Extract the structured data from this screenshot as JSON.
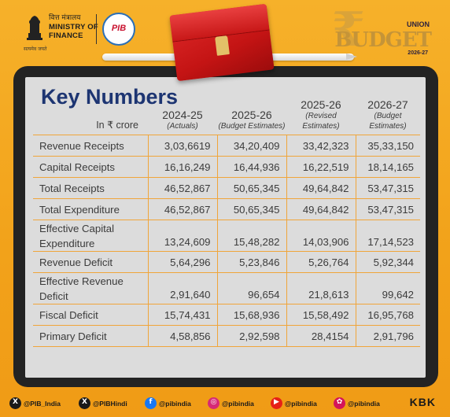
{
  "header": {
    "ministry_hindi": "वित्त मंत्रालय",
    "ministry_line1": "MINISTRY OF",
    "ministry_line2": "FINANCE",
    "tagline": "सत्यमेव जयते",
    "pib_logo_text": "PIB",
    "budget_union": "UNION",
    "budget_word": "BUDGET",
    "budget_year": "2026-27",
    "rupee_symbol": "₹"
  },
  "table": {
    "title": "Key Numbers",
    "unit_label": "In ₹ crore",
    "columns": [
      {
        "year": "2024-25",
        "sub": "(Actuals)"
      },
      {
        "year": "2025-26",
        "sub": "(Budget Estimates)"
      },
      {
        "year": "2025-26",
        "sub": "(Revised Estimates)"
      },
      {
        "year": "2026-27",
        "sub": "(Budget Estimates)"
      }
    ],
    "rows": [
      {
        "label": "Revenue Receipts",
        "values": [
          "3,03,6619",
          "34,20,409",
          "33,42,323",
          "35,33,150"
        ]
      },
      {
        "label": "Capital Receipts",
        "values": [
          "16,16,249",
          "16,44,936",
          "16,22,519",
          "18,14,165"
        ]
      },
      {
        "label": "Total Receipts",
        "values": [
          "46,52,867",
          "50,65,345",
          "49,64,842",
          "53,47,315"
        ]
      },
      {
        "label": "Total Expenditure",
        "values": [
          "46,52,867",
          "50,65,345",
          "49,64,842",
          "53,47,315"
        ]
      },
      {
        "label": "Effective Capital Expenditure",
        "values": [
          "13,24,609",
          "15,48,282",
          "14,03,906",
          "17,14,523"
        ]
      },
      {
        "label": "Revenue Deficit",
        "values": [
          "5,64,296",
          "5,23,846",
          "5,26,764",
          "5,92,344"
        ]
      },
      {
        "label": "Effective Revenue Deficit",
        "values": [
          "2,91,640",
          "96,654",
          "21,8,613",
          "99,642"
        ]
      },
      {
        "label": "Fiscal Deficit",
        "values": [
          "15,74,431",
          "15,68,936",
          "15,58,492",
          "16,95,768"
        ]
      },
      {
        "label": "Primary Deficit",
        "values": [
          "4,58,856",
          "2,92,598",
          "28,4154",
          "2,91,796"
        ]
      }
    ]
  },
  "footer": {
    "socials": [
      {
        "icon": "x-icon",
        "handle": "@PIB_India",
        "color": "#1a1a1a",
        "glyph": "X"
      },
      {
        "icon": "x-icon",
        "handle": "@PIBHindi",
        "color": "#1a1a1a",
        "glyph": "X"
      },
      {
        "icon": "facebook-icon",
        "handle": "@pibindia",
        "color": "#1877f2",
        "glyph": "f"
      },
      {
        "icon": "instagram-icon",
        "handle": "@pibindia",
        "color": "#d62976",
        "glyph": "◎"
      },
      {
        "icon": "youtube-icon",
        "handle": "@pibindia",
        "color": "#e62117",
        "glyph": "▶"
      },
      {
        "icon": "koo-icon",
        "handle": "@pibindia",
        "color": "#d4145a",
        "glyph": "✿"
      }
    ],
    "credit": "KBK"
  }
}
